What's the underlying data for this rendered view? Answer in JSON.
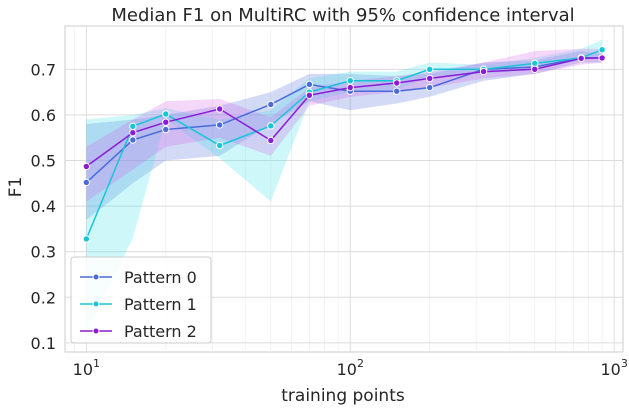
{
  "chart_data": {
    "type": "line",
    "title": "Median F1 on MultiRC with 95% confidence interval",
    "xlabel": "training points",
    "ylabel": "F1",
    "xscale": "log",
    "xlim": [
      8.3,
      1080
    ],
    "ylim": [
      0.08,
      0.795
    ],
    "grid": true,
    "legend_position": "lower-left",
    "y_ticks": [
      0.1,
      0.2,
      0.3,
      0.4,
      0.5,
      0.6,
      0.7
    ],
    "y_tick_labels": [
      "0.1",
      "0.2",
      "0.3",
      "0.4",
      "0.5",
      "0.6",
      "0.7"
    ],
    "x_ticks": [
      10,
      100,
      1000
    ],
    "x_tick_labels": [
      {
        "base": "10",
        "exp": "1"
      },
      {
        "base": "10",
        "exp": "2"
      },
      {
        "base": "10",
        "exp": "3"
      }
    ],
    "series": [
      {
        "name": "Pattern 0",
        "color": "#4a6bdc",
        "fill": "#4a6bdc",
        "x": [
          10,
          15,
          20,
          32,
          50,
          70,
          100,
          150,
          200,
          320,
          500,
          750,
          900
        ],
        "values": [
          0.452,
          0.545,
          0.568,
          0.578,
          0.623,
          0.667,
          0.652,
          0.652,
          0.66,
          0.7,
          0.705,
          0.725,
          0.725
        ],
        "lower": [
          0.37,
          0.45,
          0.5,
          0.51,
          0.58,
          0.63,
          0.61,
          0.625,
          0.64,
          0.675,
          0.69,
          0.715,
          0.715
        ],
        "upper": [
          0.58,
          0.59,
          0.6,
          0.62,
          0.65,
          0.69,
          0.69,
          0.685,
          0.69,
          0.715,
          0.72,
          0.74,
          0.735
        ]
      },
      {
        "name": "Pattern 1",
        "color": "#17c5d8",
        "fill": "#3ce0e8",
        "x": [
          10,
          15,
          20,
          32,
          50,
          70,
          100,
          150,
          200,
          320,
          500,
          750,
          900
        ],
        "values": [
          0.328,
          0.575,
          0.602,
          0.533,
          0.576,
          0.65,
          0.675,
          0.675,
          0.7,
          0.7,
          0.713,
          0.725,
          0.743
        ],
        "lower": [
          0.12,
          0.33,
          0.59,
          0.505,
          0.41,
          0.63,
          0.65,
          0.655,
          0.685,
          0.69,
          0.7,
          0.72,
          0.73
        ],
        "upper": [
          0.59,
          0.6,
          0.615,
          0.59,
          0.61,
          0.68,
          0.695,
          0.695,
          0.715,
          0.71,
          0.725,
          0.745,
          0.765
        ]
      },
      {
        "name": "Pattern 2",
        "color": "#8a1bd8",
        "fill": "#d35ee8",
        "x": [
          10,
          15,
          20,
          32,
          50,
          70,
          100,
          150,
          200,
          320,
          500,
          750,
          900
        ],
        "values": [
          0.487,
          0.561,
          0.584,
          0.613,
          0.544,
          0.643,
          0.66,
          0.67,
          0.68,
          0.695,
          0.7,
          0.724,
          0.725
        ],
        "lower": [
          0.41,
          0.48,
          0.53,
          0.55,
          0.51,
          0.62,
          0.64,
          0.65,
          0.66,
          0.68,
          0.69,
          0.71,
          0.715
        ],
        "upper": [
          0.53,
          0.59,
          0.63,
          0.635,
          0.595,
          0.66,
          0.675,
          0.685,
          0.695,
          0.715,
          0.74,
          0.745,
          0.745
        ]
      }
    ]
  }
}
